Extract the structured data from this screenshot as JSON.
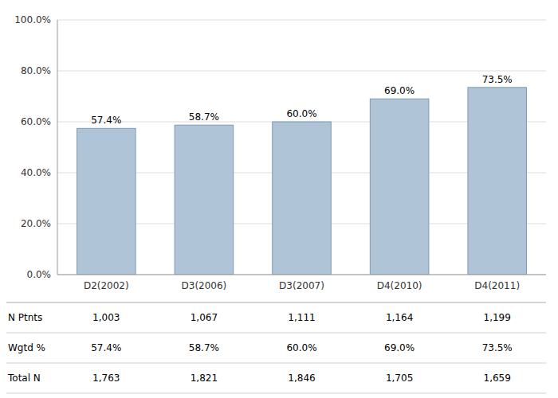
{
  "chart_data": {
    "type": "bar",
    "categories": [
      "D2(2002)",
      "D3(2006)",
      "D3(2007)",
      "D4(2010)",
      "D4(2011)"
    ],
    "values": [
      57.4,
      58.7,
      60.0,
      69.0,
      73.5
    ],
    "value_labels": [
      "57.4%",
      "58.7%",
      "60.0%",
      "69.0%",
      "73.5%"
    ],
    "data_labels": true,
    "color": "#b0c4d8",
    "ylim": [
      0,
      100
    ],
    "yticks": [
      {
        "value": 0,
        "label": "0.0%"
      },
      {
        "value": 20,
        "label": "20.0%"
      },
      {
        "value": 40,
        "label": "40.0%"
      },
      {
        "value": 60,
        "label": "60.0%"
      },
      {
        "value": 80,
        "label": "80.0%"
      },
      {
        "value": 100,
        "label": "100.0%"
      }
    ],
    "grid": true,
    "table": [
      {
        "name": "N Ptnts",
        "values": [
          1003,
          1067,
          1111,
          1164,
          1199
        ],
        "value_labels": [
          "1,003",
          "1,067",
          "1,111",
          "1,164",
          "1,199"
        ]
      },
      {
        "name": "Wgtd %",
        "values": [
          57.4,
          58.7,
          60.0,
          69.0,
          73.5
        ],
        "value_labels": [
          "57.4%",
          "58.7%",
          "60.0%",
          "69.0%",
          "73.5%"
        ]
      },
      {
        "name": "Total N",
        "values": [
          1763,
          1821,
          1846,
          1705,
          1659
        ],
        "value_labels": [
          "1,763",
          "1,821",
          "1,846",
          "1,705",
          "1,659"
        ]
      }
    ]
  }
}
